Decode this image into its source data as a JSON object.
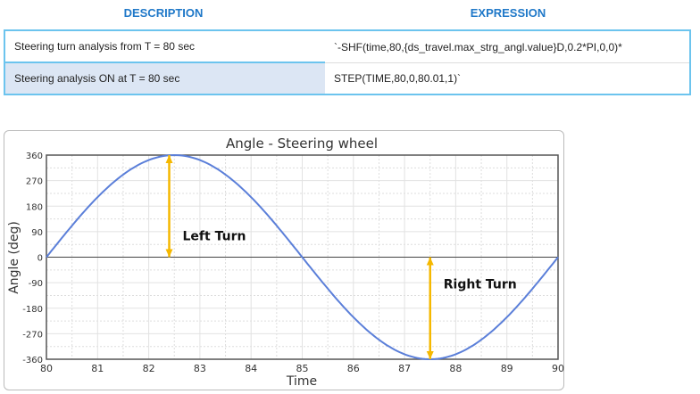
{
  "table": {
    "headers": [
      "DESCRIPTION",
      "EXPRESSION"
    ],
    "rows": [
      [
        "Steering turn analysis from T = 80 sec",
        "`-SHF(time,80,{ds_travel.max_strg_angl.value}D,0.2*PI,0,0)*"
      ],
      [
        "Steering analysis ON at T = 80 sec",
        "STEP(TIME,80,0,80.01,1)`"
      ]
    ],
    "colors": {
      "header_text": "#1f78c8",
      "border": "#6cc4ee",
      "highlight_cell": "#dce6f4"
    }
  },
  "chart_data": {
    "type": "line",
    "title": "Angle - Steering wheel",
    "xlabel": "Time",
    "ylabel": "Angle (deg)",
    "xlim": [
      80,
      90
    ],
    "ylim": [
      -360,
      360
    ],
    "xticks": [
      80,
      81,
      82,
      83,
      84,
      85,
      86,
      87,
      88,
      89,
      90
    ],
    "yticks": [
      360,
      270,
      180,
      90,
      0,
      -90,
      -180,
      -270,
      -360
    ],
    "grid": true,
    "series": [
      {
        "color": "#5b7fd9",
        "x": [
          80,
          80.5,
          81,
          81.5,
          82,
          82.5,
          83,
          83.5,
          84,
          84.5,
          85,
          85.5,
          86,
          86.5,
          87,
          87.5,
          88,
          88.5,
          89,
          89.5,
          90
        ],
        "y": [
          0,
          111,
          212,
          291,
          342,
          360,
          342,
          291,
          212,
          111,
          0,
          -111,
          -212,
          -291,
          -342,
          -360,
          -342,
          -291,
          -212,
          -111,
          0
        ]
      }
    ],
    "annotations": [
      {
        "text": "Left Turn",
        "x_at": 82.4,
        "from": 0,
        "to": 360,
        "color": "#f5b800"
      },
      {
        "text": "Right Turn",
        "x_at": 87.5,
        "from": 0,
        "to": -360,
        "color": "#f5b800"
      }
    ]
  }
}
